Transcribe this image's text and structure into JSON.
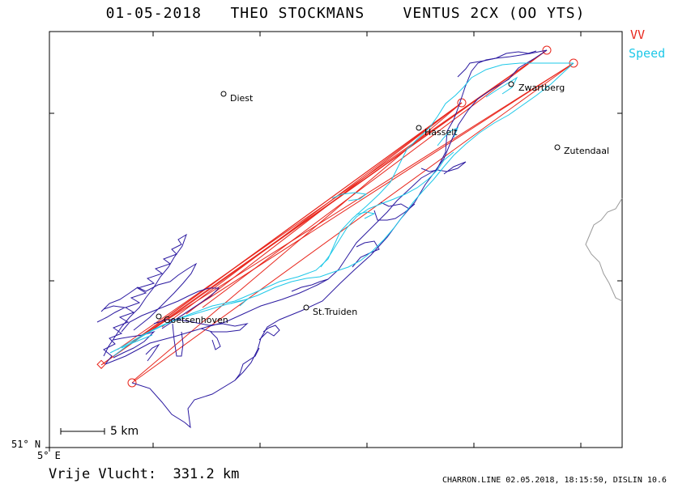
{
  "header": {
    "date": "01-05-2018",
    "pilot": "THEO STOCKMANS",
    "glider": "VENTUS 2CX (OO YTS)"
  },
  "legend": [
    {
      "label": "VV",
      "color": "#e8261c"
    },
    {
      "label": "Speed",
      "color": "#1ec8e8"
    }
  ],
  "axes": {
    "lat_label": "51° N",
    "lon_label": "5° E"
  },
  "scale_bar": {
    "label": "5 km"
  },
  "places": [
    {
      "id": "diest",
      "name": "Diest"
    },
    {
      "id": "hasselt",
      "name": "Hasselt"
    },
    {
      "id": "zwartberg",
      "name": "Zwartberg"
    },
    {
      "id": "zutendaal",
      "name": "Zutendaal"
    },
    {
      "id": "st-truiden",
      "name": "St.Truiden"
    },
    {
      "id": "goetsenhoven",
      "name": "Goetsenhoven"
    }
  ],
  "footer": {
    "distance": "Vrije Vlucht:  331.2 km",
    "credit": "CHARRON.LINE 02.05.2018, 18:15:50, DISLIN 10.6"
  },
  "colors": {
    "track": "#2b1aa0",
    "speed": "#1ec8e8",
    "task": "#e8261c",
    "border": "#9a9a9a"
  }
}
